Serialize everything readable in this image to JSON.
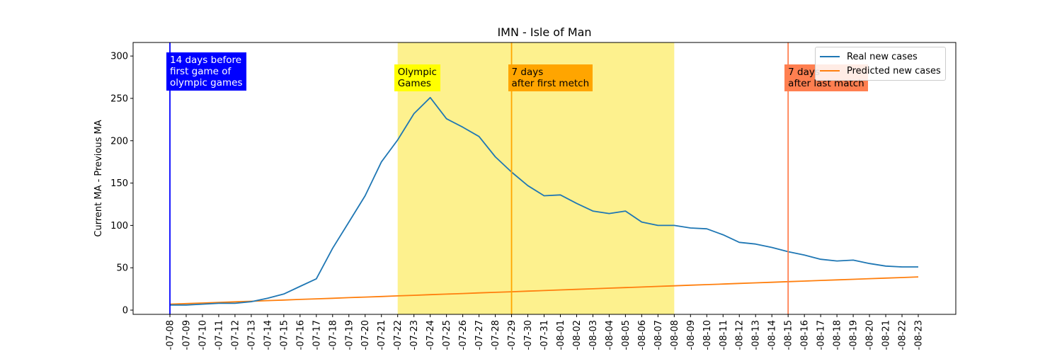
{
  "chart_data": {
    "type": "line",
    "title": "IMN - Isle of Man",
    "xlabel": "",
    "ylabel": "Current MA - Previous MA",
    "ylim": [
      -5,
      316
    ],
    "yticks": [
      0,
      50,
      100,
      150,
      200,
      250,
      300
    ],
    "x": [
      "2021-07-08",
      "2021-07-09",
      "2021-07-10",
      "2021-07-11",
      "2021-07-12",
      "2021-07-13",
      "2021-07-14",
      "2021-07-15",
      "2021-07-16",
      "2021-07-17",
      "2021-07-18",
      "2021-07-19",
      "2021-07-20",
      "2021-07-21",
      "2021-07-22",
      "2021-07-23",
      "2021-07-24",
      "2021-07-25",
      "2021-07-26",
      "2021-07-27",
      "2021-07-28",
      "2021-07-29",
      "2021-07-30",
      "2021-07-31",
      "2021-08-01",
      "2021-08-02",
      "2021-08-03",
      "2021-08-04",
      "2021-08-05",
      "2021-08-06",
      "2021-08-07",
      "2021-08-08",
      "2021-08-09",
      "2021-08-10",
      "2021-08-11",
      "2021-08-12",
      "2021-08-13",
      "2021-08-14",
      "2021-08-15",
      "2021-08-16",
      "2021-08-17",
      "2021-08-18",
      "2021-08-19",
      "2021-08-20",
      "2021-08-21",
      "2021-08-22",
      "2021-08-23"
    ],
    "xtick_labels": [
      "-07-08",
      "-07-09",
      "-07-10",
      "-07-11",
      "-07-12",
      "-07-13",
      "-07-14",
      "-07-15",
      "-07-16",
      "-07-17",
      "-07-18",
      "-07-19",
      "-07-20",
      "-07-21",
      "-07-22",
      "-07-23",
      "-07-24",
      "-07-25",
      "-07-26",
      "-07-27",
      "-07-28",
      "-07-29",
      "-07-30",
      "-07-31",
      "-08-01",
      "-08-02",
      "-08-03",
      "-08-04",
      "-08-05",
      "-08-06",
      "-08-07",
      "-08-08",
      "-08-09",
      "-08-10",
      "-08-11",
      "-08-12",
      "-08-13",
      "-08-14",
      "-08-15",
      "-08-16",
      "-08-17",
      "-08-18",
      "-08-19",
      "-08-20",
      "-08-21",
      "-08-22",
      "-08-23"
    ],
    "series": [
      {
        "name": "Real new cases",
        "color": "#1f77b4",
        "values": [
          6,
          6,
          7,
          8,
          8,
          10,
          14,
          19,
          28,
          37,
          73,
          104,
          135,
          175,
          201,
          232,
          251,
          226,
          216,
          205,
          181,
          163,
          147,
          135,
          136,
          126,
          117,
          114,
          117,
          104,
          100,
          100,
          97,
          96,
          89,
          80,
          78,
          74,
          69,
          65,
          60,
          58,
          59,
          55,
          52,
          51,
          51
        ]
      },
      {
        "name": "Predicted new cases",
        "color": "#ff7f0e",
        "values": [
          7.0,
          7.7,
          8.4,
          9.1,
          9.8,
          10.5,
          11.2,
          11.9,
          12.6,
          13.3,
          14.0,
          14.7,
          15.4,
          16.1,
          16.8,
          17.5,
          18.2,
          18.9,
          19.6,
          20.3,
          21.0,
          21.7,
          22.4,
          23.1,
          23.8,
          24.5,
          25.2,
          25.9,
          26.6,
          27.3,
          28.0,
          28.7,
          29.4,
          30.1,
          30.8,
          31.5,
          32.2,
          32.9,
          33.6,
          34.3,
          35.0,
          35.7,
          36.4,
          37.1,
          37.8,
          38.5,
          39.2
        ]
      }
    ],
    "shaded_region": {
      "from": "2021-07-22",
      "to": "2021-08-08",
      "color": "#fdf082"
    },
    "vlines": [
      {
        "x": "2021-07-08",
        "color": "#0000ff",
        "label": "14 days before\nfirst game of\nolympic games",
        "box_color": "#0000ff",
        "text_color": "#ffffff"
      },
      {
        "x": "2021-07-29",
        "color": "#ffa500",
        "label": "7 days\nafter first metch",
        "box_color": "#ffa500",
        "text_color": "#000000"
      },
      {
        "x": "2021-08-15",
        "color": "#ff7f50",
        "label": "7 days\nafter last match",
        "box_color": "#ff7f50",
        "text_color": "#000000"
      }
    ],
    "region_label": {
      "x": "2021-07-22",
      "label": "Olympic\nGames",
      "box_color": "#ffff00",
      "text_color": "#000000"
    },
    "legend": {
      "position": "top-right",
      "entries": [
        "Real new cases",
        "Predicted new cases"
      ]
    },
    "grid": false
  }
}
